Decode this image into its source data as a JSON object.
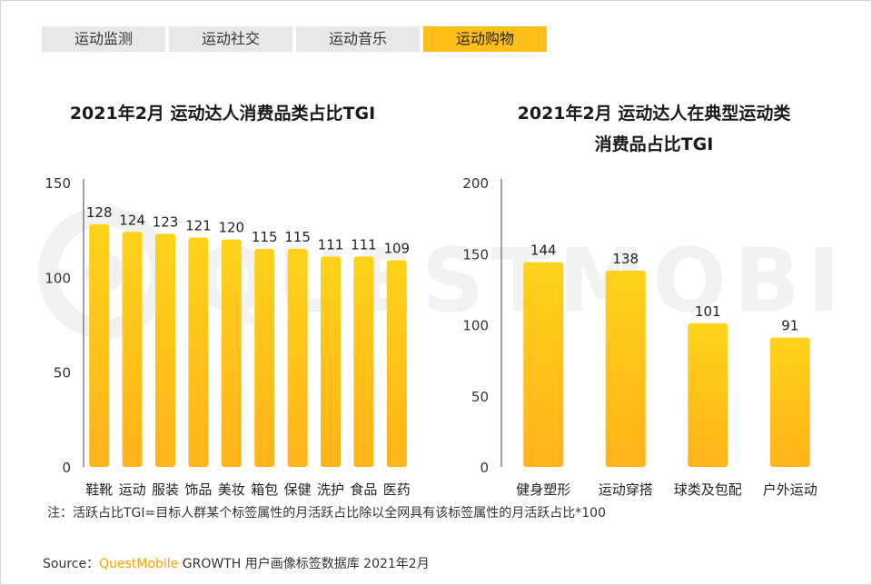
{
  "tabs": [
    {
      "label": "运动监测",
      "active": false
    },
    {
      "label": "运动社交",
      "active": false
    },
    {
      "label": "运动音乐",
      "active": false
    },
    {
      "label": "运动购物",
      "active": true
    }
  ],
  "watermark": {
    "text": "QUESTMOBILE"
  },
  "colors": {
    "bar_top": "#ffd21a",
    "bar_bottom": "#ffb31a",
    "tab_active": "#ffbf1a",
    "brand": "#f5a500"
  },
  "chart_data": [
    {
      "type": "bar",
      "title": "2021年2月 运动达人消费品类占比TGI",
      "categories": [
        "鞋靴",
        "运动",
        "服装",
        "饰品",
        "美妆",
        "箱包",
        "保健",
        "洗护",
        "食品",
        "医药"
      ],
      "values": [
        128,
        124,
        123,
        121,
        120,
        115,
        115,
        111,
        111,
        109
      ],
      "ylim": [
        0,
        150
      ],
      "yticks": [
        0,
        50,
        100,
        150
      ],
      "xlabel": "",
      "ylabel": ""
    },
    {
      "type": "bar",
      "title_line1": "2021年2月 运动达人在典型运动类",
      "title_line2": "消费品占比TGI",
      "categories": [
        "健身塑形",
        "运动穿搭",
        "球类及包配",
        "户外运动"
      ],
      "values": [
        144,
        138,
        101,
        91
      ],
      "ylim": [
        0,
        200
      ],
      "yticks": [
        0,
        50,
        100,
        150,
        200
      ],
      "xlabel": "",
      "ylabel": ""
    }
  ],
  "footnote": "注：活跃占比TGI=目标人群某个标签属性的月活跃占比除以全网具有该标签属性的月活跃占比*100",
  "source": {
    "prefix": "Source：",
    "brand": "QuestMobile",
    "suffix": " GROWTH 用户画像标签数据库 2021年2月"
  }
}
